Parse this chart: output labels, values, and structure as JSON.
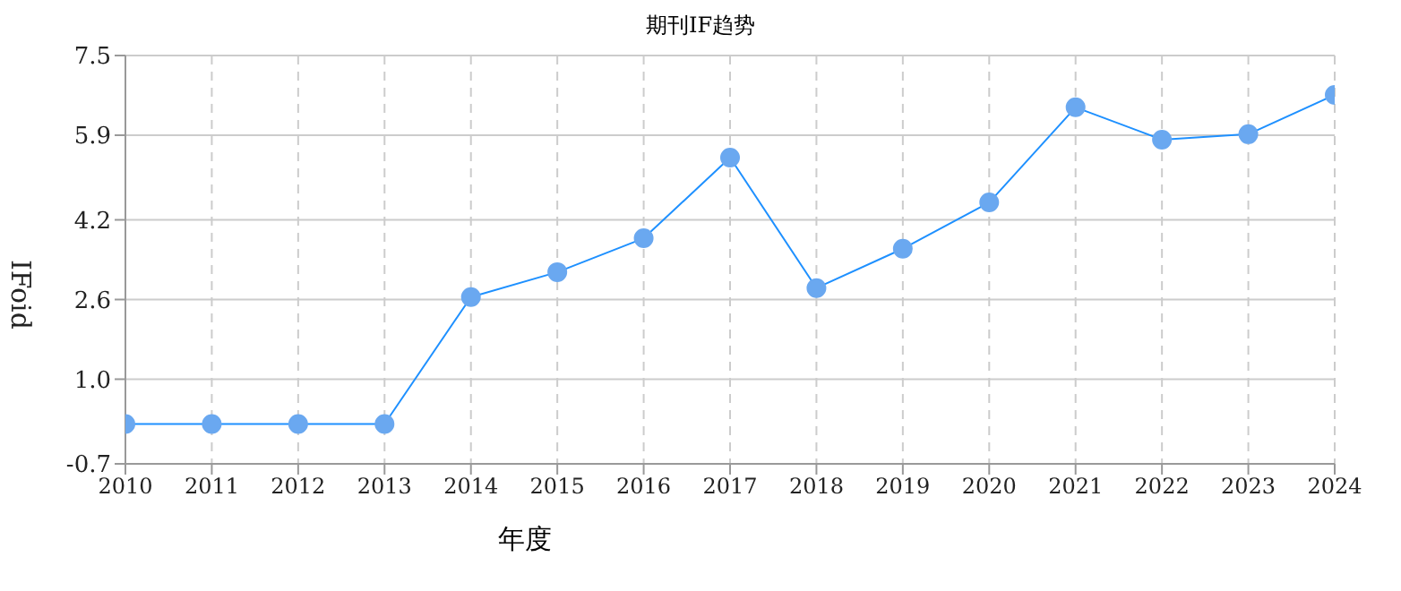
{
  "chart_data": {
    "type": "line",
    "title": "期刊IF趋势",
    "xlabel": "年度",
    "ylabel": "IFoid",
    "categories": [
      "2010",
      "2011",
      "2012",
      "2013",
      "2014",
      "2015",
      "2016",
      "2017",
      "2018",
      "2019",
      "2020",
      "2021",
      "2022",
      "2023",
      "2024"
    ],
    "series": [
      {
        "color": "#1e90ff",
        "values": [
          0.1,
          0.1,
          0.1,
          0.1,
          2.65,
          3.15,
          3.83,
          5.45,
          2.83,
          3.62,
          4.55,
          6.46,
          5.81,
          5.92,
          6.71
        ]
      }
    ],
    "ylim": [
      -0.7,
      7.5
    ],
    "yticks": [
      -0.7,
      {
        "value": 1,
        "label": "1.0"
      },
      2.6,
      4.2,
      5.9,
      7.5
    ],
    "grid": true,
    "marker": "circle"
  }
}
